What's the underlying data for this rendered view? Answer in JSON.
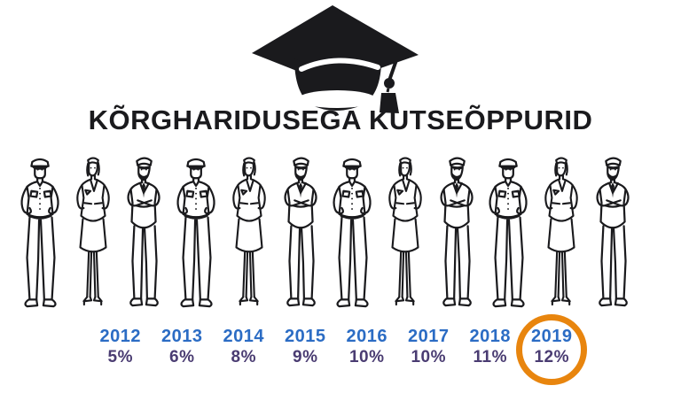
{
  "title": "KÕRGHARIDUSEGA KUTSEÕPPURID",
  "icons": {
    "header_icon": "graduation-cap-icon"
  },
  "figures": {
    "description": "row of sketched uniformed people",
    "row": [
      "officer",
      "attendant",
      "crossed-arms",
      "officer",
      "attendant",
      "crossed-arms",
      "officer",
      "attendant",
      "crossed-arms",
      "officer",
      "attendant",
      "crossed-arms"
    ]
  },
  "chart_data": {
    "type": "table",
    "title": "KÕRGHARIDUSEGA KUTSEÕPPURID",
    "categories": [
      "2012",
      "2013",
      "2014",
      "2015",
      "2016",
      "2017",
      "2018",
      "2019"
    ],
    "values": [
      5,
      6,
      8,
      9,
      10,
      10,
      11,
      12
    ],
    "unit": "%",
    "value_labels": [
      "5%",
      "6%",
      "8%",
      "9%",
      "10%",
      "10%",
      "11%",
      "12%"
    ],
    "highlighted_category": "2019",
    "highlight_style": "orange-circle",
    "legend": "none",
    "colors": {
      "year_label": "#2b6cc4",
      "value_label": "#4a3c72",
      "highlight_ring": "#e8850e",
      "ink": "#1a1a1d",
      "background": "#ffffff"
    }
  }
}
